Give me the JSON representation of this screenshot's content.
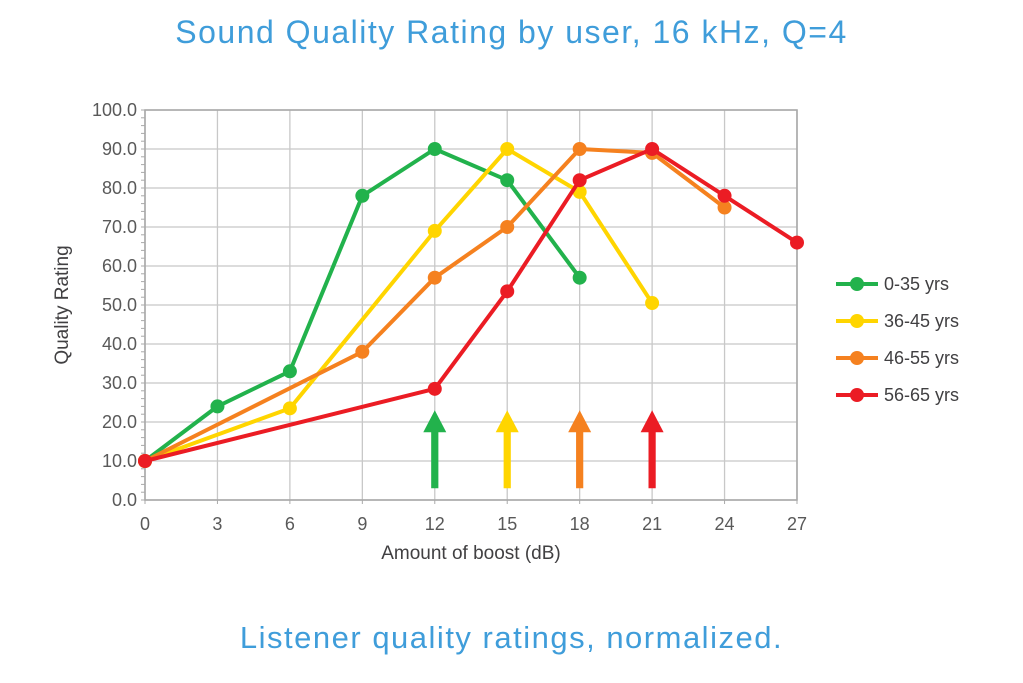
{
  "title": "Sound Quality Rating by user, 16 kHz, Q=4",
  "caption": "Listener quality ratings, normalized.",
  "colors": {
    "heading_text": "#3F9DDA",
    "grid": "#C8C8C8",
    "plot_border": "#A9A9A9",
    "tick_text": "#595959",
    "axis_text": "#414042"
  },
  "chart_data": {
    "type": "line",
    "title": "Sound Quality Rating by user, 16 kHz, Q=4",
    "subtitle": "Listener quality ratings, normalized.",
    "xlabel": "Amount of boost (dB)",
    "ylabel": "Quality Rating",
    "xlim": [
      0,
      27
    ],
    "ylim": [
      0,
      100
    ],
    "x_ticks": [
      0,
      3,
      6,
      9,
      12,
      15,
      18,
      21,
      24,
      27
    ],
    "y_ticks": [
      0,
      10,
      20,
      30,
      40,
      50,
      60,
      70,
      80,
      90,
      100
    ],
    "y_tick_decimals": 1,
    "y_minor_tick_step": 2,
    "grid": true,
    "legend_position": "right",
    "series": [
      {
        "name": "0-35 yrs",
        "color": "#22B24C",
        "points": [
          [
            0,
            10
          ],
          [
            3,
            24
          ],
          [
            6,
            33
          ],
          [
            9,
            78
          ],
          [
            12,
            90
          ],
          [
            15,
            82
          ],
          [
            18,
            57
          ]
        ]
      },
      {
        "name": "36-45 yrs",
        "color": "#FFD500",
        "points": [
          [
            0,
            10
          ],
          [
            6,
            23.5
          ],
          [
            12,
            69
          ],
          [
            15,
            90
          ],
          [
            18,
            79
          ],
          [
            21,
            50.5
          ]
        ]
      },
      {
        "name": "46-55 yrs",
        "color": "#F5811F",
        "points": [
          [
            0,
            10
          ],
          [
            9,
            38
          ],
          [
            12,
            57
          ],
          [
            15,
            70
          ],
          [
            18,
            90
          ],
          [
            21,
            89
          ],
          [
            24,
            75
          ]
        ]
      },
      {
        "name": "56-65 yrs",
        "color": "#EB1C24",
        "points": [
          [
            0,
            10
          ],
          [
            12,
            28.5
          ],
          [
            15,
            53.5
          ],
          [
            18,
            82
          ],
          [
            21,
            90
          ],
          [
            24,
            78
          ],
          [
            27,
            66
          ]
        ]
      }
    ],
    "annotations": {
      "arrows": [
        {
          "x": 12,
          "color": "#22B24C",
          "y_from": 3,
          "y_to": 23
        },
        {
          "x": 15,
          "color": "#FFD500",
          "y_from": 3,
          "y_to": 23
        },
        {
          "x": 18,
          "color": "#F5811F",
          "y_from": 3,
          "y_to": 23
        },
        {
          "x": 21,
          "color": "#EB1C24",
          "y_from": 3,
          "y_to": 23
        }
      ]
    }
  }
}
